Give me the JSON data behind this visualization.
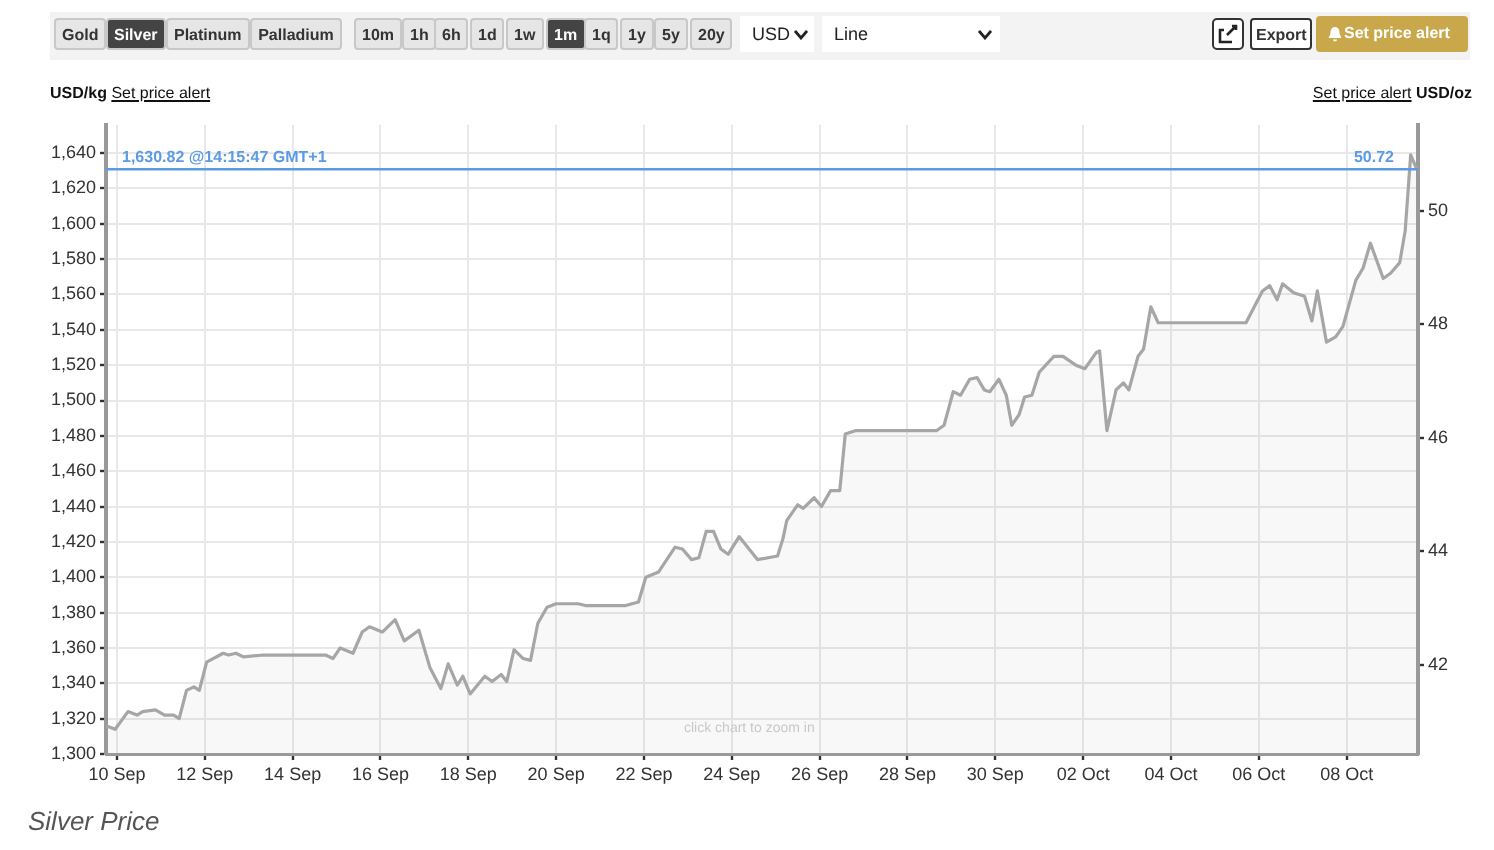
{
  "chart_data": {
    "type": "area",
    "title": "Silver Price",
    "ylabel": "USD/kg",
    "y2label": "USD/oz",
    "annotations": [
      "Gold",
      "Silver",
      "Platinum",
      "Palladium",
      "10m",
      "1h",
      "6h",
      "1d",
      "1w",
      "1m",
      "1q",
      "1y",
      "5y",
      "20y",
      "USD",
      "Line",
      "Export",
      "Set price alert",
      "Set price alert",
      "Set price alert",
      "click chart to zoom in",
      "50.72"
    ],
    "x": [
      "--09-09T18:00",
      "--09-09T23:00",
      "--09-10T06:00",
      "--09-10T11:00",
      "--09-10T14:00",
      "--09-10T21:00",
      "--09-11T02:00",
      "--09-11T07:00",
      "--09-11T10:00",
      "--09-11T14:00",
      "--09-11T18:00",
      "--09-11T21:00",
      "--09-12T01:00",
      "--09-12T10:00",
      "--09-12T13:00",
      "--09-12T17:00",
      "--09-12T21:00",
      "--09-13T08:00",
      "--09-14T18:00",
      "--09-14T22:00",
      "--09-15T02:00",
      "--09-15T09:00",
      "--09-15T14:00",
      "--09-15T18:00",
      "--09-16T01:00",
      "--09-16T08:00",
      "--09-16T13:00",
      "--09-16T21:00",
      "--09-17T03:00",
      "--09-17T09:00",
      "--09-17T13:00",
      "--09-17T18:00",
      "--09-17T21:00",
      "--09-18T01:00",
      "--09-18T09:00",
      "--09-18T13:00",
      "--09-18T18:00",
      "--09-18T21:00",
      "--09-19T01:00",
      "--09-19T06:00",
      "--09-19T10:00",
      "--09-19T14:00",
      "--09-19T19:00",
      "--09-20T00:00",
      "--09-20T12:00",
      "--09-20T16:00",
      "--09-21T14:00",
      "--09-21T21:00",
      "--09-22T01:00",
      "--09-22T08:00",
      "--09-22T17:00",
      "--09-22T21:00",
      "--09-23T02:00",
      "--09-23T06:00",
      "--09-23T10:00",
      "--09-23T14:00",
      "--09-23T18:00",
      "--09-23T22:00",
      "--09-24T04:00",
      "--09-24T14:00",
      "--09-25T01:00",
      "--09-25T04:00",
      "--09-25T06:00",
      "--09-25T12:00",
      "--09-25T15:00",
      "--09-25T21:00",
      "--09-26T01:00",
      "--09-26T06:00",
      "--09-26T11:00",
      "--09-26T14:00",
      "--09-26T20:00",
      "--09-28T16:00",
      "--09-28T20:00",
      "--09-29T01:00",
      "--09-29T05:00",
      "--09-29T10:00",
      "--09-29T14:00",
      "--09-29T18:00",
      "--09-29T21:00",
      "--09-30T02:00",
      "--09-30T06:00",
      "--09-30T09:00",
      "--09-30T13:00",
      "--09-30T16:00",
      "--09-30T20:00",
      "--10-01T00:00",
      "--10-01T08:00",
      "--10-01T13:00",
      "--10-01T20:00",
      "--10-02T01:00",
      "--10-02T07:00",
      "--10-02T09:00",
      "--10-02T13:00",
      "--10-02T18:00",
      "--10-02T22:00",
      "--10-03T01:00",
      "--10-03T06:00",
      "--10-03T09:00",
      "--10-03T13:00",
      "--10-03T17:00",
      "--10-05T17:00",
      "--10-06T02:00",
      "--10-06T06:00",
      "--10-06T10:00",
      "--10-06T13:00",
      "--10-06T19:00",
      "--10-07T01:00",
      "--10-07T05:00",
      "--10-07T08:00",
      "--10-07T13:00",
      "--10-07T18:00",
      "--10-07T22:00",
      "--10-08T05:00",
      "--10-08T09:00",
      "--10-08T13:00",
      "--10-08T20:00",
      "--10-09T00:00",
      "--10-09T05:00",
      "--10-09T08:00",
      "--10-09T11:00",
      "--10-09T14:15"
    ],
    "series": [
      {
        "color": "#a6a6a6",
        "values": [
          1316,
          1314,
          1324,
          1322,
          1324,
          1325,
          1322,
          1322,
          1320,
          1336,
          1338,
          1336,
          1352,
          1357,
          1356,
          1357,
          1355,
          1356,
          1356,
          1354,
          1360,
          1357,
          1369,
          1372,
          1369,
          1376,
          1364,
          1370,
          1349,
          1337,
          1351,
          1339,
          1344,
          1334,
          1344,
          1341,
          1345,
          1341,
          1359,
          1354,
          1353,
          1374,
          1383,
          1385,
          1385,
          1384,
          1384,
          1386,
          1400,
          1403,
          1417,
          1416,
          1410,
          1411,
          1426,
          1426,
          1416,
          1413,
          1423,
          1410,
          1412,
          1422,
          1432,
          1441,
          1439,
          1445,
          1440,
          1449,
          1449,
          1481,
          1483,
          1483,
          1486,
          1505,
          1503,
          1512,
          1513,
          1506,
          1505,
          1512,
          1503,
          1486,
          1492,
          1502,
          1503,
          1516,
          1525,
          1525,
          1520,
          1518,
          1527,
          1528,
          1483,
          1506,
          1510,
          1506,
          1525,
          1529,
          1553,
          1544,
          1544,
          1562,
          1565,
          1557,
          1566,
          1561,
          1559,
          1545,
          1562,
          1533,
          1536,
          1542,
          1568,
          1575,
          1589,
          1569,
          1572,
          1578,
          1596,
          1639,
          1631
        ]
      }
    ],
    "xlim": [
      "--09-09T18:00",
      "--10-09T15:00"
    ],
    "xticks": [
      {
        "value": "--09-10",
        "label": "10 Sep"
      },
      {
        "value": "--09-12",
        "label": "12 Sep"
      },
      {
        "value": "--09-14",
        "label": "14 Sep"
      },
      {
        "value": "--09-16",
        "label": "16 Sep"
      },
      {
        "value": "--09-18",
        "label": "18 Sep"
      },
      {
        "value": "--09-20",
        "label": "20 Sep"
      },
      {
        "value": "--09-22",
        "label": "22 Sep"
      },
      {
        "value": "--09-24",
        "label": "24 Sep"
      },
      {
        "value": "--09-26",
        "label": "26 Sep"
      },
      {
        "value": "--09-28",
        "label": "28 Sep"
      },
      {
        "value": "--09-30",
        "label": "30 Sep"
      },
      {
        "value": "--10-02",
        "label": "02 Oct"
      },
      {
        "value": "--10-04",
        "label": "04 Oct"
      },
      {
        "value": "--10-06",
        "label": "06 Oct"
      },
      {
        "value": "--10-08",
        "label": "08 Oct"
      }
    ],
    "ylim": [
      1300,
      1656
    ],
    "yticks": [
      {
        "value": 1300,
        "label": "1,300"
      },
      {
        "value": 1320,
        "label": "1,320"
      },
      {
        "value": 1340,
        "label": "1,340"
      },
      {
        "value": 1360,
        "label": "1,360"
      },
      {
        "value": 1380,
        "label": "1,380"
      },
      {
        "value": 1400,
        "label": "1,400"
      },
      {
        "value": 1420,
        "label": "1,420"
      },
      {
        "value": 1440,
        "label": "1,440"
      },
      {
        "value": 1460,
        "label": "1,460"
      },
      {
        "value": 1480,
        "label": "1,480"
      },
      {
        "value": 1500,
        "label": "1,500"
      },
      {
        "value": 1520,
        "label": "1,520"
      },
      {
        "value": 1540,
        "label": "1,540"
      },
      {
        "value": 1560,
        "label": "1,560"
      },
      {
        "value": 1580,
        "label": "1,580"
      },
      {
        "value": 1600,
        "label": "1,600"
      },
      {
        "value": 1620,
        "label": "1,620"
      },
      {
        "value": 1640,
        "label": "1,640"
      }
    ],
    "y2lim": [
      40.43,
      51.51
    ],
    "y2ticks": [
      42,
      44,
      46,
      48,
      50
    ],
    "ref_lines": [
      {
        "axis": "y",
        "value": 1630.82,
        "label": "1,630.82 @14:15:47 GMT+1",
        "color": "#5b9be6"
      }
    ],
    "grid": true
  }
}
